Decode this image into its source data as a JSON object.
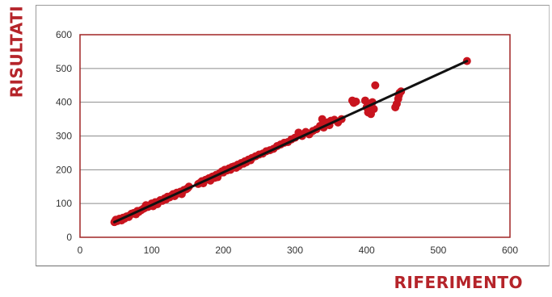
{
  "chart_data": {
    "type": "scatter",
    "xlabel": "RIFERIMENTO",
    "ylabel": "RISULTATI",
    "xlim": [
      0,
      600
    ],
    "ylim": [
      0,
      600
    ],
    "x_ticks": [
      "0",
      "100",
      "200",
      "300",
      "400",
      "500",
      "600"
    ],
    "y_ticks": [
      "0",
      "100",
      "200",
      "300",
      "400",
      "500",
      "600"
    ],
    "grid": "horizontal",
    "colors": {
      "points": "#c8141e",
      "trendline": "#111111",
      "frame": "#a02525",
      "labels": "#b5242a"
    },
    "trendline": {
      "x": [
        48,
        540
      ],
      "y": [
        45,
        522
      ]
    },
    "points": [
      [
        48,
        45
      ],
      [
        50,
        52
      ],
      [
        52,
        48
      ],
      [
        55,
        55
      ],
      [
        58,
        50
      ],
      [
        60,
        58
      ],
      [
        62,
        55
      ],
      [
        65,
        62
      ],
      [
        68,
        60
      ],
      [
        70,
        66
      ],
      [
        72,
        70
      ],
      [
        75,
        72
      ],
      [
        78,
        68
      ],
      [
        80,
        78
      ],
      [
        82,
        75
      ],
      [
        85,
        80
      ],
      [
        88,
        84
      ],
      [
        90,
        86
      ],
      [
        92,
        95
      ],
      [
        95,
        90
      ],
      [
        98,
        95
      ],
      [
        100,
        100
      ],
      [
        102,
        92
      ],
      [
        105,
        104
      ],
      [
        108,
        98
      ],
      [
        110,
        106
      ],
      [
        112,
        110
      ],
      [
        115,
        108
      ],
      [
        118,
        115
      ],
      [
        120,
        112
      ],
      [
        122,
        120
      ],
      [
        125,
        118
      ],
      [
        128,
        124
      ],
      [
        130,
        128
      ],
      [
        132,
        122
      ],
      [
        135,
        132
      ],
      [
        138,
        130
      ],
      [
        140,
        135
      ],
      [
        142,
        128
      ],
      [
        145,
        140
      ],
      [
        148,
        142
      ],
      [
        150,
        145
      ],
      [
        152,
        150
      ],
      [
        165,
        158
      ],
      [
        168,
        162
      ],
      [
        170,
        166
      ],
      [
        172,
        160
      ],
      [
        175,
        170
      ],
      [
        178,
        172
      ],
      [
        180,
        175
      ],
      [
        182,
        168
      ],
      [
        185,
        180
      ],
      [
        188,
        176
      ],
      [
        190,
        185
      ],
      [
        192,
        178
      ],
      [
        195,
        190
      ],
      [
        198,
        195
      ],
      [
        200,
        192
      ],
      [
        202,
        200
      ],
      [
        205,
        198
      ],
      [
        208,
        204
      ],
      [
        210,
        200
      ],
      [
        212,
        208
      ],
      [
        215,
        210
      ],
      [
        218,
        206
      ],
      [
        220,
        215
      ],
      [
        222,
        212
      ],
      [
        225,
        220
      ],
      [
        228,
        218
      ],
      [
        230,
        225
      ],
      [
        232,
        222
      ],
      [
        235,
        230
      ],
      [
        238,
        228
      ],
      [
        240,
        235
      ],
      [
        245,
        240
      ],
      [
        250,
        245
      ],
      [
        255,
        248
      ],
      [
        260,
        255
      ],
      [
        265,
        258
      ],
      [
        270,
        262
      ],
      [
        275,
        270
      ],
      [
        280,
        275
      ],
      [
        285,
        280
      ],
      [
        290,
        282
      ],
      [
        295,
        290
      ],
      [
        300,
        295
      ],
      [
        305,
        310
      ],
      [
        310,
        300
      ],
      [
        315,
        312
      ],
      [
        320,
        305
      ],
      [
        325,
        315
      ],
      [
        330,
        320
      ],
      [
        335,
        330
      ],
      [
        338,
        350
      ],
      [
        340,
        325
      ],
      [
        342,
        335
      ],
      [
        345,
        340
      ],
      [
        348,
        332
      ],
      [
        350,
        345
      ],
      [
        355,
        348
      ],
      [
        360,
        340
      ],
      [
        365,
        350
      ],
      [
        380,
        405
      ],
      [
        382,
        398
      ],
      [
        385,
        402
      ],
      [
        398,
        405
      ],
      [
        400,
        385
      ],
      [
        402,
        370
      ],
      [
        405,
        395
      ],
      [
        406,
        365
      ],
      [
        408,
        400
      ],
      [
        410,
        380
      ],
      [
        412,
        450
      ],
      [
        440,
        385
      ],
      [
        442,
        395
      ],
      [
        444,
        410
      ],
      [
        445,
        420
      ],
      [
        446,
        428
      ],
      [
        448,
        432
      ],
      [
        540,
        522
      ]
    ]
  }
}
